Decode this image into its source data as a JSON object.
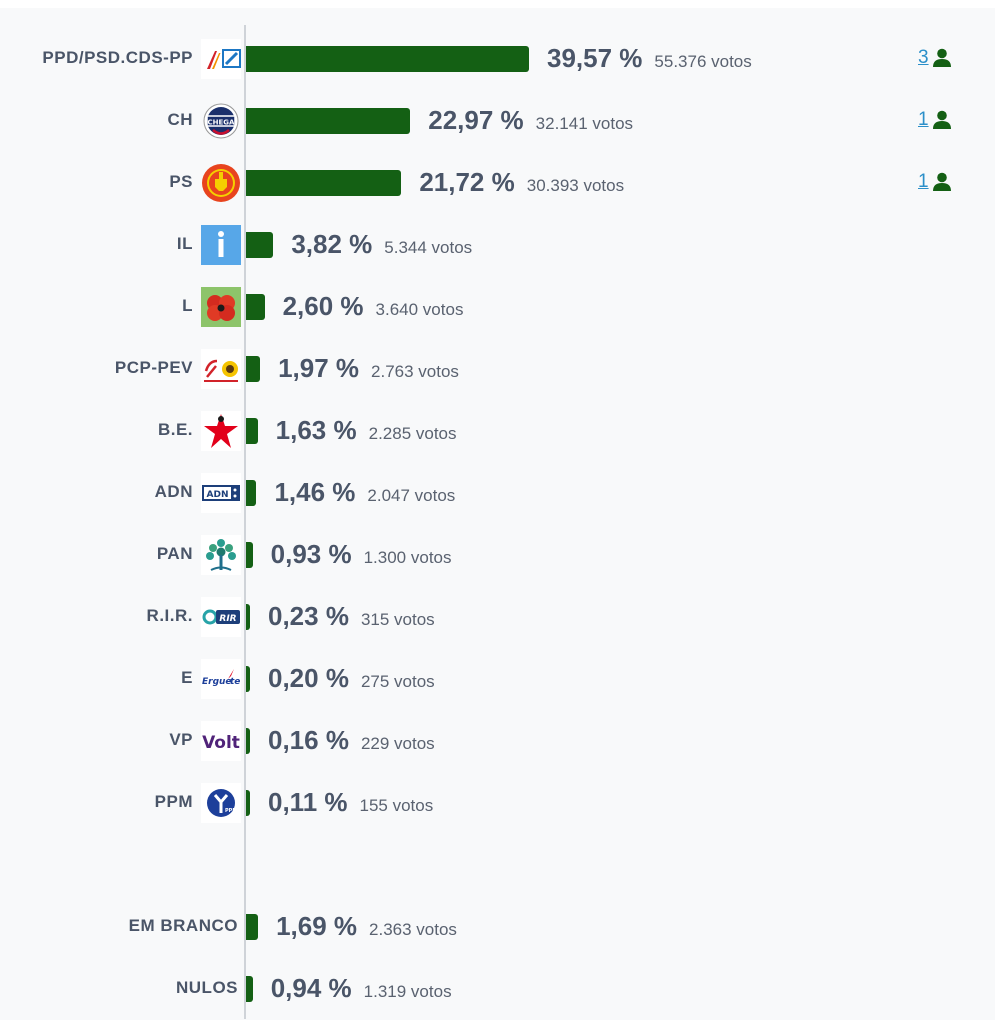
{
  "chart_data": {
    "type": "bar",
    "orientation": "horizontal",
    "categories": [
      "PPD/PSD.CDS-PP",
      "CH",
      "PS",
      "IL",
      "L",
      "PCP-PEV",
      "B.E.",
      "ADN",
      "PAN",
      "R.I.R.",
      "E",
      "VP",
      "PPM",
      "EM BRANCO",
      "NULOS"
    ],
    "values": [
      39.57,
      22.97,
      21.72,
      3.82,
      2.6,
      1.97,
      1.63,
      1.46,
      0.93,
      0.23,
      0.2,
      0.16,
      0.11,
      1.69,
      0.94
    ],
    "value_labels": [
      "39,57 %",
      "22,97 %",
      "21,72 %",
      "3,82 %",
      "2,60 %",
      "1,97 %",
      "1,63 %",
      "1,46 %",
      "0,93 %",
      "0,23 %",
      "0,20 %",
      "0,16 %",
      "0,11 %",
      "1,69 %",
      "0,94 %"
    ],
    "votes_labels": [
      "55.376 votos",
      "32.141 votos",
      "30.393 votos",
      "5.344 votos",
      "3.640 votos",
      "2.763 votos",
      "2.285 votos",
      "2.047 votos",
      "1.300 votos",
      "315 votos",
      "275 votos",
      "229 votos",
      "155 votos",
      "2.363 votos",
      "1.319 votos"
    ],
    "seats": [
      "3",
      "1",
      "1"
    ],
    "logos": [
      "ad-logo",
      "chega-logo",
      "ps-logo",
      "il-logo",
      "livre-logo",
      "cdu-logo",
      "be-logo",
      "adn-logo",
      "pan-logo",
      "rir-logo",
      "ergue-te-logo",
      "volt-logo",
      "ppm-logo"
    ],
    "colors": {
      "bar": "#146014",
      "text": "#4a5568",
      "seats_link": "#2b8fc9",
      "seats_icon": "#146014"
    },
    "title": "",
    "xlabel": "",
    "ylabel": "",
    "xlim": [
      0,
      100
    ],
    "grid": false,
    "legend": "none"
  }
}
